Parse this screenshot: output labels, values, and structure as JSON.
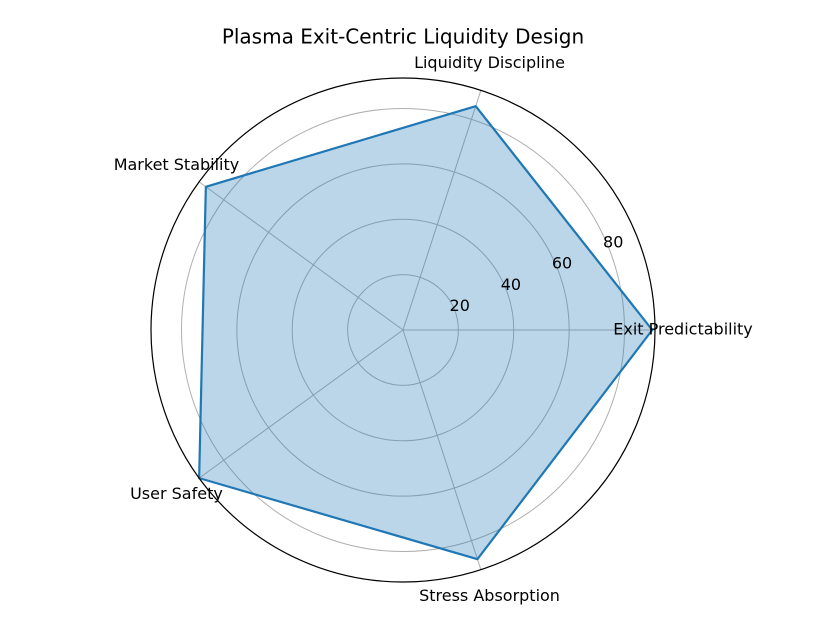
{
  "chart_data": {
    "type": "radar",
    "title": "Plasma Exit-Centric Liquidity Design",
    "categories": [
      "Exit Predictability",
      "Liquidity Discipline",
      "Market Stability",
      "User Safety",
      "Stress Absorption"
    ],
    "values": [
      90,
      85,
      88,
      91,
      87
    ],
    "color": "#1f77b4",
    "ylim": [
      0,
      91
    ],
    "yticks": [
      20,
      40,
      60,
      80
    ],
    "grid": true
  }
}
